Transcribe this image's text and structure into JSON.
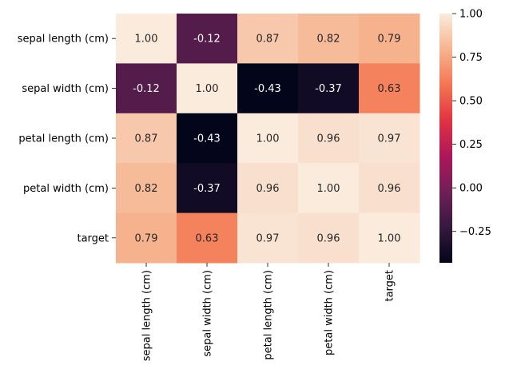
{
  "chart_data": {
    "type": "heatmap",
    "rows": [
      "sepal length (cm)",
      "sepal width (cm)",
      "petal length (cm)",
      "petal width (cm)",
      "target"
    ],
    "columns": [
      "sepal length (cm)",
      "sepal width (cm)",
      "petal length (cm)",
      "petal width (cm)",
      "target"
    ],
    "values": [
      [
        1.0,
        -0.12,
        0.87,
        0.82,
        0.79
      ],
      [
        -0.12,
        1.0,
        -0.43,
        -0.37,
        0.63
      ],
      [
        0.87,
        -0.43,
        1.0,
        0.96,
        0.97
      ],
      [
        0.82,
        -0.37,
        0.96,
        1.0,
        0.96
      ],
      [
        0.79,
        0.63,
        0.97,
        0.96,
        1.0
      ]
    ],
    "cell_labels": [
      [
        "1.00",
        "-0.12",
        "0.87",
        "0.82",
        "0.79"
      ],
      [
        "-0.12",
        "1.00",
        "-0.43",
        "-0.37",
        "0.63"
      ],
      [
        "0.87",
        "-0.43",
        "1.00",
        "0.96",
        "0.97"
      ],
      [
        "0.82",
        "-0.37",
        "0.96",
        "1.00",
        "0.96"
      ],
      [
        "0.79",
        "0.63",
        "0.97",
        "0.96",
        "1.00"
      ]
    ],
    "colorbar": {
      "range": [
        -0.43,
        1.0
      ],
      "ticks": [
        1.0,
        0.75,
        0.5,
        0.25,
        0.0,
        -0.25
      ],
      "tick_labels": [
        "1.00",
        "0.75",
        "0.50",
        "0.25",
        "0.00",
        "−0.25"
      ],
      "colormap": "rocket"
    },
    "colors": {
      "ramp": [
        "#03051a",
        "#35193e",
        "#701f57",
        "#ad1759",
        "#e13342",
        "#f37651",
        "#f6b48f",
        "#faebdd"
      ]
    }
  }
}
